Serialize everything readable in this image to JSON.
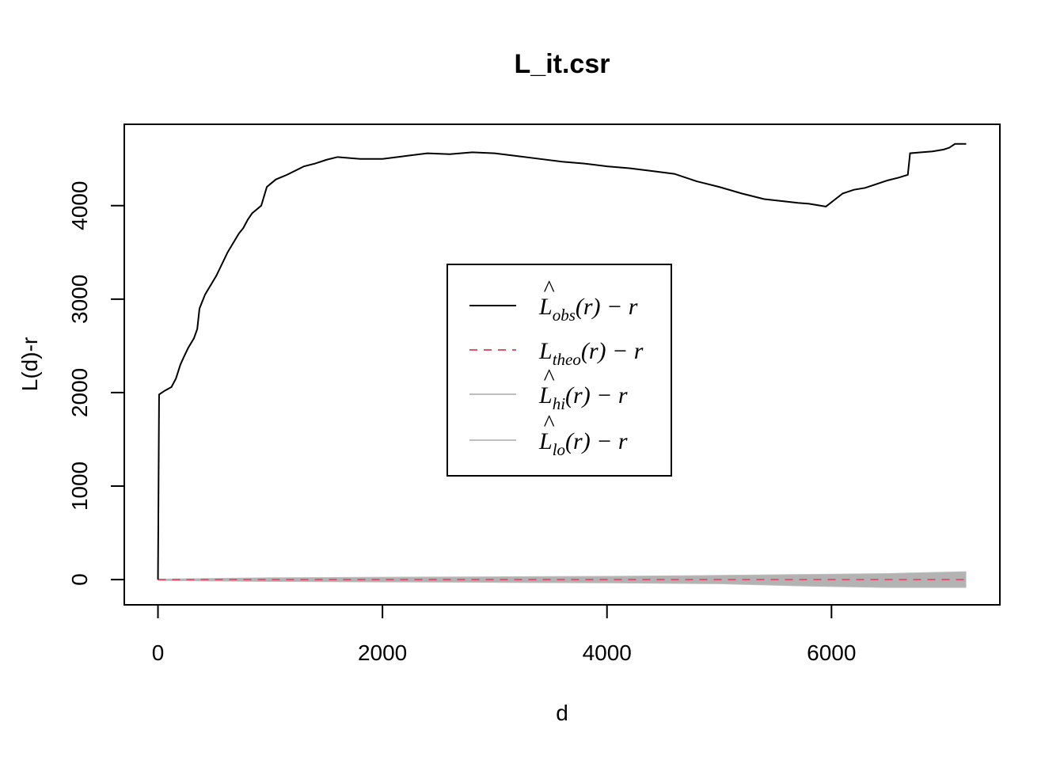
{
  "chart_data": {
    "type": "line",
    "title": "L_it.csr",
    "xlabel": "d",
    "ylabel": "L(d)-r",
    "xlim": [
      -300,
      7500
    ],
    "ylim": [
      -270,
      4870
    ],
    "xticks": [
      0,
      2000,
      4000,
      6000
    ],
    "xtick_labels": [
      "0",
      "2000",
      "4000",
      "6000"
    ],
    "yticks": [
      0,
      1000,
      2000,
      3000,
      4000
    ],
    "ytick_labels": [
      "0",
      "1000",
      "2000",
      "3000",
      "4000"
    ],
    "grid": false,
    "legend_position": "center",
    "series": [
      {
        "name": "L̂obs(r) − r",
        "legend": {
          "base": "L",
          "hat": true,
          "sub": "obs",
          "tail": "(r) − r"
        },
        "color": "#000000",
        "style": "solid",
        "x": [
          0,
          10,
          60,
          120,
          160,
          200,
          230,
          270,
          320,
          350,
          370,
          420,
          470,
          520,
          560,
          620,
          680,
          720,
          760,
          800,
          840,
          880,
          920,
          970,
          1050,
          1150,
          1300,
          1400,
          1500,
          1600,
          1800,
          2000,
          2200,
          2400,
          2600,
          2800,
          3000,
          3200,
          3400,
          3600,
          3800,
          4000,
          4200,
          4400,
          4600,
          4800,
          5000,
          5200,
          5400,
          5550,
          5700,
          5800,
          5950,
          6100,
          6200,
          6300,
          6400,
          6500,
          6600,
          6680,
          6700,
          6800,
          6900,
          7000,
          7050,
          7100,
          7200
        ],
        "y": [
          0,
          1980,
          2020,
          2060,
          2150,
          2300,
          2380,
          2480,
          2580,
          2680,
          2900,
          3050,
          3150,
          3250,
          3350,
          3500,
          3620,
          3700,
          3760,
          3850,
          3920,
          3960,
          4000,
          4200,
          4280,
          4330,
          4420,
          4450,
          4490,
          4520,
          4500,
          4500,
          4530,
          4560,
          4550,
          4570,
          4560,
          4530,
          4500,
          4470,
          4450,
          4420,
          4400,
          4370,
          4340,
          4260,
          4200,
          4130,
          4070,
          4050,
          4030,
          4020,
          3990,
          4130,
          4170,
          4190,
          4230,
          4270,
          4300,
          4330,
          4560,
          4570,
          4580,
          4600,
          4620,
          4660,
          4660
        ]
      },
      {
        "name": "Ltheo(r) − r",
        "legend": {
          "base": "L",
          "hat": false,
          "sub": "theo",
          "tail": "(r) − r"
        },
        "color": "#DF536B",
        "style": "dashed",
        "x": [
          0,
          7200
        ],
        "y": [
          0,
          0
        ]
      },
      {
        "name": "L̂hi(r) − r",
        "legend": {
          "base": "L",
          "hat": true,
          "sub": "hi",
          "tail": "(r) − r"
        },
        "color": "#BEBEBE",
        "style": "solid",
        "x": [
          0,
          1000,
          2000,
          3000,
          4000,
          5000,
          5800,
          6500,
          7200
        ],
        "y": [
          5,
          20,
          25,
          30,
          35,
          45,
          55,
          65,
          85
        ]
      },
      {
        "name": "L̂lo(r) − r",
        "legend": {
          "base": "L",
          "hat": true,
          "sub": "lo",
          "tail": "(r) − r"
        },
        "color": "#BEBEBE",
        "style": "solid",
        "x": [
          0,
          1000,
          2000,
          3000,
          4000,
          5000,
          5800,
          6500,
          7200
        ],
        "y": [
          -10,
          -20,
          -25,
          -30,
          -35,
          -45,
          -70,
          -85,
          -85
        ]
      }
    ],
    "band": {
      "fill": "#B3B3B3",
      "between": [
        "L̂hi(r) − r",
        "L̂lo(r) − r"
      ]
    }
  }
}
